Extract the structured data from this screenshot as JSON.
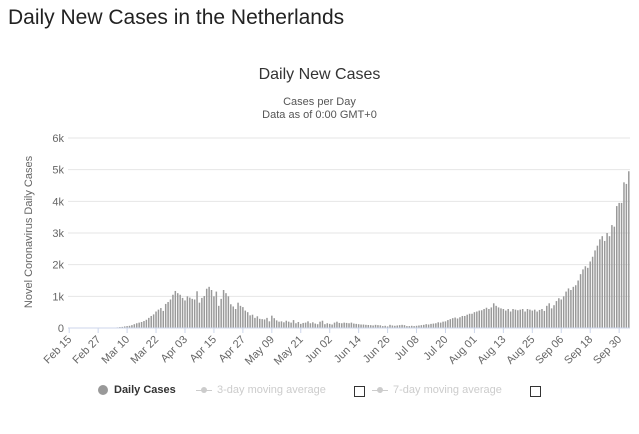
{
  "page": {
    "heading": "Daily New Cases in the Netherlands"
  },
  "legend": {
    "daily_cases": "Daily Cases",
    "avg3": "3-day moving average",
    "avg7": "7-day moving average"
  },
  "colors": {
    "bar": "#999999",
    "axis": "#ccd6eb",
    "grid": "#e6e6e6",
    "text": "#666666"
  },
  "chart_data": {
    "type": "bar",
    "title": "Daily New Cases",
    "subtitle": [
      "Cases per Day",
      "Data as of 0:00 GMT+0"
    ],
    "xlabel": "",
    "ylabel": "Novel Coronavirus Daily Cases",
    "ylim": [
      0,
      6000
    ],
    "yticks": [
      0,
      1000,
      2000,
      3000,
      4000,
      5000,
      6000
    ],
    "ytick_labels": [
      "0",
      "1k",
      "2k",
      "3k",
      "4k",
      "5k",
      "6k"
    ],
    "xtick_labels": [
      "Feb 15",
      "Feb 27",
      "Mar 10",
      "Mar 22",
      "Apr 03",
      "Apr 15",
      "Apr 27",
      "May 09",
      "May 21",
      "Jun 02",
      "Jun 14",
      "Jun 26",
      "Jul 08",
      "Jul 20",
      "Aug 01",
      "Aug 13",
      "Aug 25",
      "Sep 06",
      "Sep 18",
      "Sep 30"
    ],
    "xtick_start_date": "2020-02-15",
    "xtick_interval_days": 12,
    "grid": true,
    "legend_position": "bottom",
    "series": [
      {
        "name": "Daily Cases",
        "start_date": "2020-02-15",
        "values": [
          0,
          0,
          0,
          0,
          0,
          0,
          0,
          0,
          0,
          0,
          0,
          0,
          1,
          1,
          2,
          3,
          5,
          7,
          10,
          15,
          20,
          30,
          35,
          50,
          60,
          70,
          90,
          120,
          150,
          170,
          190,
          220,
          260,
          320,
          380,
          430,
          520,
          580,
          630,
          540,
          760,
          820,
          900,
          1050,
          1170,
          1100,
          1050,
          950,
          870,
          1000,
          960,
          920,
          900,
          1160,
          800,
          950,
          1010,
          1240,
          1300,
          1200,
          1000,
          1150,
          700,
          920,
          1200,
          1100,
          1000,
          750,
          680,
          600,
          800,
          700,
          660,
          550,
          500,
          400,
          420,
          320,
          370,
          290,
          280,
          270,
          320,
          210,
          390,
          310,
          240,
          200,
          210,
          180,
          230,
          200,
          170,
          250,
          150,
          190,
          130,
          160,
          170,
          210,
          150,
          180,
          140,
          120,
          200,
          230,
          120,
          150,
          130,
          110,
          170,
          200,
          160,
          150,
          170,
          160,
          150,
          170,
          140,
          130,
          120,
          110,
          110,
          100,
          95,
          90,
          80,
          100,
          90,
          85,
          60,
          70,
          50,
          100,
          80,
          70,
          80,
          90,
          100,
          90,
          60,
          60,
          70,
          60,
          70,
          80,
          90,
          100,
          120,
          110,
          130,
          140,
          150,
          180,
          170,
          200,
          210,
          250,
          280,
          310,
          330,
          300,
          340,
          380,
          380,
          420,
          450,
          450,
          500,
          520,
          550,
          560,
          600,
          640,
          600,
          650,
          780,
          700,
          650,
          620,
          600,
          550,
          600,
          520,
          600,
          580,
          560,
          580,
          600,
          520,
          600,
          580,
          550,
          580,
          520,
          570,
          600,
          540,
          700,
          780,
          620,
          720,
          850,
          940,
          900,
          1000,
          1150,
          1250,
          1200,
          1300,
          1350,
          1500,
          1700,
          1850,
          1950,
          1900,
          2100,
          2250,
          2450,
          2600,
          2800,
          2900,
          2750,
          3000,
          2900,
          3250,
          3200,
          3850,
          3950,
          3950,
          4600,
          4550,
          4950
        ]
      }
    ]
  }
}
